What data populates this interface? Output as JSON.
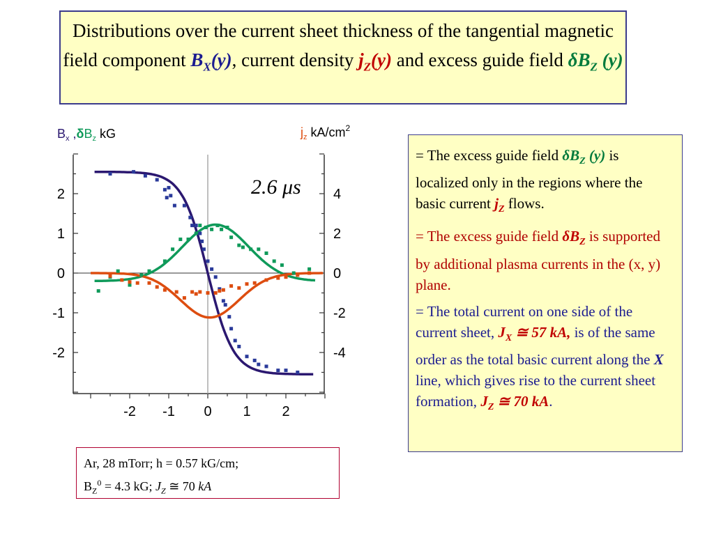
{
  "title": {
    "part1": "Distributions over the current sheet thickness of the tangential magnetic field component ",
    "bx_sym": "B",
    "bx_sub": "X",
    "bx_arg": "(y)",
    "part2": ", current density ",
    "jz_sym": "j",
    "jz_sub": "Z",
    "jz_arg": "(y)",
    "part3": " and excess guide field ",
    "dbz_sym": "δB",
    "dbz_sub": "Z",
    "dbz_arg": " (y)"
  },
  "info": {
    "p1": {
      "bullet": "= ",
      "t1": "The excess guide field ",
      "sym": "δB",
      "sub": "Z",
      "arg": " (y)",
      "t2": " is localized only in the regions where the basic current ",
      "sym2": "j",
      "sub2": "Z",
      "t3": " flows."
    },
    "p2": {
      "bullet": "= ",
      "t1": "The excess guide field ",
      "sym": "δB",
      "sub": "Z",
      "t2": " is supported by additional plasma currents in the (x, y) plane."
    },
    "p3": {
      "bullet": "= ",
      "t1": "The total current on one side of the current sheet, ",
      "sym": "J",
      "sub": "X",
      "val": " ≅ 57 kA,",
      "t2": " is of the same order as the total basic current along the ",
      "xline": "X",
      "t3": " line, which gives rise to  the current sheet formation, ",
      "sym2": "J",
      "sub2": "Z",
      "val2": "  ≅ 70 kA",
      "t4": "."
    }
  },
  "conditions": {
    "line1": "Ar, 28 mTorr; h = 0.57 kG/cm;",
    "b": "B",
    "b_sub": "Z",
    "b_sup": "0",
    "b_val": " = 4.3 kG;  ",
    "j": "J",
    "j_sub": "Z",
    "j_val": " ≅ 70 ",
    "j_unit": "kA"
  },
  "chart_data": {
    "type": "scatter",
    "annotation": "2.6 μs",
    "left_axis": {
      "label_parts": [
        "B",
        "x",
        " ,",
        "δ",
        "B",
        "z",
        " kG"
      ],
      "ticks": [
        -2,
        -1,
        0,
        1,
        2
      ],
      "range": [
        -3,
        3
      ]
    },
    "right_axis": {
      "label_parts": [
        "j",
        "z",
        " kA/cm",
        "2"
      ],
      "ticks": [
        -4,
        -2,
        0,
        2,
        4
      ],
      "range": [
        -6,
        6
      ]
    },
    "x_axis": {
      "ticks": [
        -2,
        -1,
        0,
        1,
        2
      ],
      "range": [
        -3,
        3
      ]
    },
    "colors": {
      "bx": "#2b1870",
      "bx_marker": "#2a3a9a",
      "dbz": "#0f9a5a",
      "jz": "#dd4d10",
      "axis": "#333333",
      "center_line": "#aaaaaa"
    },
    "series": [
      {
        "key": "bx",
        "axis": "left",
        "points": [
          [
            -2.5,
            2.5
          ],
          [
            -1.9,
            2.55
          ],
          [
            -1.6,
            2.45
          ],
          [
            -1.3,
            2.35
          ],
          [
            -1.1,
            2.1
          ],
          [
            -1.0,
            2.15
          ],
          [
            -1.05,
            1.9
          ],
          [
            -0.95,
            1.95
          ],
          [
            -0.85,
            1.7
          ],
          [
            -0.6,
            1.7
          ],
          [
            -0.45,
            1.4
          ],
          [
            -0.4,
            1.2
          ],
          [
            -0.3,
            1.2
          ],
          [
            -0.2,
            1.0
          ],
          [
            -0.15,
            0.8
          ],
          [
            -0.1,
            0.6
          ],
          [
            0.0,
            0.3
          ],
          [
            0.1,
            0.1
          ],
          [
            0.2,
            -0.1
          ],
          [
            0.3,
            -0.4
          ],
          [
            0.4,
            -0.7
          ],
          [
            0.45,
            -0.8
          ],
          [
            0.55,
            -1.1
          ],
          [
            0.6,
            -1.4
          ],
          [
            0.7,
            -1.7
          ],
          [
            0.8,
            -1.85
          ],
          [
            1.0,
            -2.1
          ],
          [
            1.2,
            -2.2
          ],
          [
            1.3,
            -2.3
          ],
          [
            1.5,
            -2.35
          ],
          [
            1.8,
            -2.45
          ],
          [
            2.0,
            -2.45
          ],
          [
            2.3,
            -2.5
          ]
        ]
      },
      {
        "key": "dbz",
        "axis": "left",
        "points": [
          [
            -2.8,
            -0.45
          ],
          [
            -2.5,
            -0.1
          ],
          [
            -2.3,
            0.05
          ],
          [
            -2.0,
            -0.3
          ],
          [
            -1.7,
            -0.05
          ],
          [
            -1.5,
            0.05
          ],
          [
            -1.1,
            0.3
          ],
          [
            -0.9,
            0.6
          ],
          [
            -0.7,
            0.85
          ],
          [
            -0.5,
            0.85
          ],
          [
            -0.3,
            1.0
          ],
          [
            -0.2,
            1.2
          ],
          [
            -0.05,
            1.15
          ],
          [
            0.1,
            1.1
          ],
          [
            0.25,
            1.2
          ],
          [
            0.35,
            1.1
          ],
          [
            0.5,
            1.15
          ],
          [
            0.6,
            0.9
          ],
          [
            0.8,
            0.7
          ],
          [
            0.9,
            0.65
          ],
          [
            1.1,
            0.6
          ],
          [
            1.3,
            0.6
          ],
          [
            1.5,
            0.5
          ],
          [
            1.7,
            0.3
          ],
          [
            1.9,
            0.2
          ],
          [
            2.2,
            0.0
          ],
          [
            2.6,
            0.1
          ]
        ]
      },
      {
        "key": "jz",
        "axis": "right",
        "points": [
          [
            -2.5,
            -0.15
          ],
          [
            -2.2,
            -0.35
          ],
          [
            -2.0,
            -0.45
          ],
          [
            -1.8,
            -0.5
          ],
          [
            -1.5,
            -0.5
          ],
          [
            -1.3,
            -0.7
          ],
          [
            -1.1,
            -0.85
          ],
          [
            -0.8,
            -0.95
          ],
          [
            -0.6,
            -1.25
          ],
          [
            -0.4,
            -0.95
          ],
          [
            -0.3,
            -1.05
          ],
          [
            -0.2,
            -0.95
          ],
          [
            0.0,
            -1.0
          ],
          [
            0.2,
            -1.0
          ],
          [
            0.3,
            -0.9
          ],
          [
            0.4,
            -0.85
          ],
          [
            0.6,
            -0.65
          ],
          [
            0.8,
            -0.75
          ],
          [
            1.0,
            -0.55
          ],
          [
            1.2,
            -0.5
          ],
          [
            1.5,
            -0.35
          ],
          [
            1.8,
            -0.25
          ],
          [
            2.0,
            -0.2
          ],
          [
            2.3,
            -0.1
          ],
          [
            2.6,
            0.0
          ]
        ]
      }
    ],
    "fits": [
      {
        "key": "bx",
        "model": "-a*tanh(y/w)",
        "params": {
          "a": 2.55,
          "w": 0.65
        },
        "y_range": [
          -2.9,
          2.7
        ]
      },
      {
        "key": "dbz",
        "model": "c + h*exp(-(y-y0)^2/(2 s^2))",
        "params": {
          "c": -0.2,
          "h": 1.42,
          "y0": 0.2,
          "s": 0.85
        },
        "y_range": [
          -2.9,
          2.75
        ]
      },
      {
        "key": "jz",
        "model": "-h*exp(-(y-y0)^2/(2 s^2))",
        "params": {
          "h": 1.12,
          "y0": 0.05,
          "s": 0.75
        },
        "y_range": [
          -3.0,
          2.95
        ]
      }
    ]
  }
}
